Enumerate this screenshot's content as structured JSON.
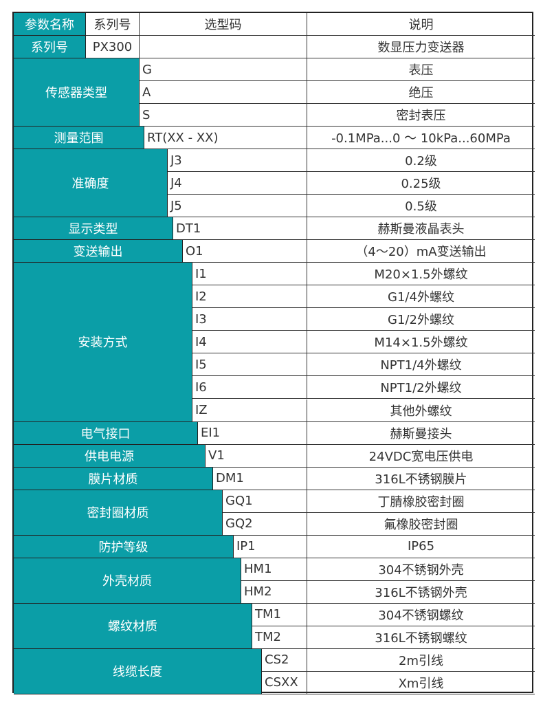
{
  "header": {
    "param": "参数名称",
    "series": "系列号",
    "code": "选型码",
    "desc": "说明"
  },
  "series_row": {
    "label": "系列号",
    "value": "PX300",
    "code": "",
    "desc": "数显压力变送器"
  },
  "teal_color": "#0b9ea7",
  "groups": [
    {
      "label": "传感器类型",
      "rows": [
        {
          "code": "G",
          "desc": "表压"
        },
        {
          "code": "A",
          "desc": "绝压"
        },
        {
          "code": "S",
          "desc": "密封表压"
        }
      ]
    },
    {
      "label": "测量范围",
      "rows": [
        {
          "code": "RT(XX - XX)",
          "desc": "-0.1MPa...0 ～ 10kPa...60MPa"
        }
      ]
    },
    {
      "label": "准确度",
      "rows": [
        {
          "code": "J3",
          "desc": "0.2级"
        },
        {
          "code": "J4",
          "desc": "0.25级"
        },
        {
          "code": "J5",
          "desc": "0.5级"
        }
      ]
    },
    {
      "label": "显示类型",
      "rows": [
        {
          "code": "DT1",
          "desc": "赫斯曼液晶表头"
        }
      ]
    },
    {
      "label": "变送输出",
      "rows": [
        {
          "code": "O1",
          "desc": "（4～20）mA变送输出"
        }
      ]
    },
    {
      "label": "安装方式",
      "rows": [
        {
          "code": "I1",
          "desc": "M20×1.5外螺纹"
        },
        {
          "code": "I2",
          "desc": "G1/4外螺纹"
        },
        {
          "code": "I3",
          "desc": "G1/2外螺纹"
        },
        {
          "code": "I4",
          "desc": "M14×1.5外螺纹"
        },
        {
          "code": "I5",
          "desc": "NPT1/4外螺纹"
        },
        {
          "code": "I6",
          "desc": "NPT1/2外螺纹"
        },
        {
          "code": "IZ",
          "desc": "其他外螺纹"
        }
      ]
    },
    {
      "label": "电气接口",
      "rows": [
        {
          "code": "EI1",
          "desc": "赫斯曼接头"
        }
      ]
    },
    {
      "label": "供电电源",
      "rows": [
        {
          "code": "V1",
          "desc": "24VDC宽电压供电"
        }
      ]
    },
    {
      "label": "膜片材质",
      "rows": [
        {
          "code": "DM1",
          "desc": "316L不锈钢膜片"
        }
      ]
    },
    {
      "label": "密封圈材质",
      "rows": [
        {
          "code": "GQ1",
          "desc": "丁腈橡胶密封圈"
        },
        {
          "code": "GQ2",
          "desc": "氟橡胶密封圈"
        }
      ]
    },
    {
      "label": "防护等级",
      "rows": [
        {
          "code": "IP1",
          "desc": "IP65"
        }
      ]
    },
    {
      "label": "外壳材质",
      "rows": [
        {
          "code": "HM1",
          "desc": "304不锈钢外壳"
        },
        {
          "code": "HM2",
          "desc": "316L不锈钢外壳"
        }
      ]
    },
    {
      "label": "螺纹材质",
      "rows": [
        {
          "code": "TM1",
          "desc": "304不锈钢螺纹"
        },
        {
          "code": "TM2",
          "desc": "316L不锈钢螺纹"
        }
      ]
    },
    {
      "label": "线缆长度",
      "rows": [
        {
          "code": "CS2",
          "desc": "2m引线"
        },
        {
          "code": "CSXX",
          "desc": "Xm引线"
        }
      ]
    }
  ]
}
